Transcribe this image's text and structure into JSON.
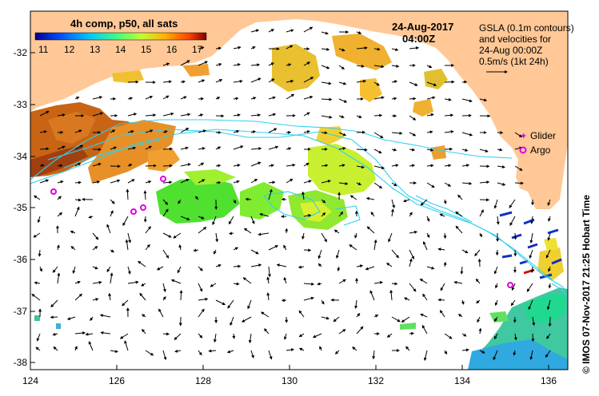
{
  "colorbar": {
    "title": "4h comp, p50, all sats",
    "ticks": [
      "11",
      "12",
      "13",
      "14",
      "15",
      "16",
      "17"
    ],
    "colors": [
      "#00008f",
      "#0050ff",
      "#00c8ff",
      "#40ff80",
      "#c0ff30",
      "#ffb000",
      "#ff4000",
      "#800000"
    ]
  },
  "header": {
    "date": "24-Aug-2017",
    "time": "04:00Z"
  },
  "legend_note": {
    "line1": "GSLA (0.1m contours)",
    "line2": "and velocities for",
    "line3": "24-Aug 00:00Z",
    "line4": "0.5m/s (1kt 24h)"
  },
  "markers": {
    "glider_label": "Glider",
    "argo_label": "Argo",
    "glider_color": "#e000e0",
    "argo_color": "#e000e0"
  },
  "axes": {
    "lat_ticks": [
      "-32",
      "-33",
      "-34",
      "-35",
      "-36",
      "-37",
      "-38"
    ],
    "lon_ticks": [
      "124",
      "126",
      "128",
      "130",
      "132",
      "134",
      "136"
    ]
  },
  "credit": "© IMOS 07-Nov-2017 21:25 Hobart Time",
  "colors": {
    "land": "#ffc896",
    "contour": "#30d0f0"
  }
}
